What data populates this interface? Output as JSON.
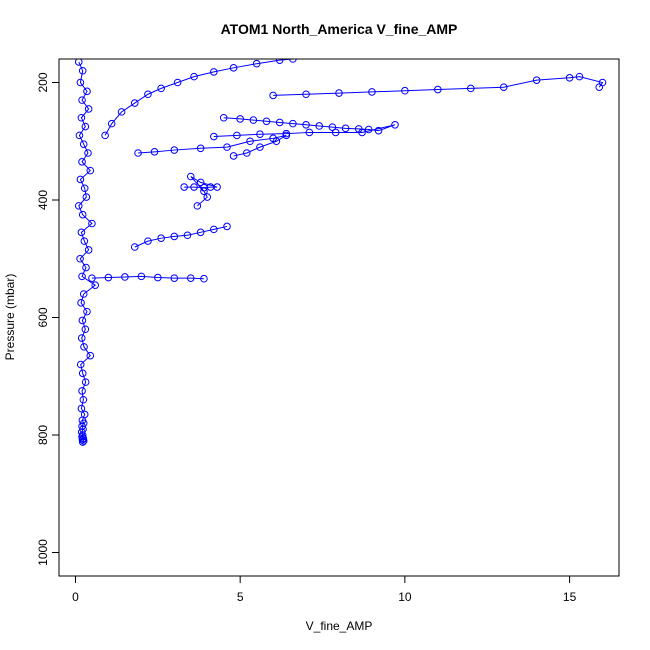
{
  "chart_data": {
    "type": "scatter",
    "title": "ATOM1 North_America V_fine_AMP",
    "xlabel": "V_fine_AMP",
    "ylabel": "Pressure (mbar)",
    "xlim": [
      -0.5,
      16.5
    ],
    "ylim": [
      1040,
      160
    ],
    "y_reversed": true,
    "x_ticks": [
      0,
      5,
      10,
      15
    ],
    "y_ticks": [
      200,
      400,
      600,
      800,
      1000
    ],
    "x_tick_labels": [
      "0",
      "5",
      "10",
      "15"
    ],
    "y_tick_labels": [
      "200",
      "400",
      "600",
      "800",
      "1000"
    ],
    "series_color": "#0000ff",
    "marker": "open-circle",
    "connected_by_lines": true,
    "grid": false,
    "series": [
      {
        "x": [
          0.1,
          0.22,
          0.15,
          0.35,
          0.2,
          0.4,
          0.18,
          0.3,
          0.12,
          0.25,
          0.38,
          0.2,
          0.45,
          0.15,
          0.28,
          0.33,
          0.1,
          0.22,
          0.5,
          0.18,
          0.27,
          0.4,
          0.14,
          0.32,
          0.2,
          0.6,
          0.25,
          0.17,
          0.35,
          0.21,
          0.3,
          0.19,
          0.26,
          0.45,
          0.16,
          0.22,
          0.31,
          0.2,
          0.24,
          0.18,
          0.28,
          0.21,
          0.25,
          0.2,
          0.23,
          0.19,
          0.22,
          0.2,
          0.24,
          0.21,
          0.25,
          0.22
        ],
        "y": [
          165,
          180,
          200,
          215,
          230,
          245,
          260,
          275,
          290,
          305,
          320,
          335,
          350,
          365,
          380,
          395,
          410,
          425,
          440,
          455,
          470,
          485,
          500,
          515,
          530,
          545,
          560,
          575,
          590,
          605,
          620,
          635,
          650,
          665,
          680,
          695,
          710,
          725,
          740,
          755,
          765,
          775,
          780,
          785,
          790,
          795,
          800,
          803,
          806,
          808,
          810,
          812
        ]
      },
      {
        "x": [
          0.9,
          1.1,
          1.4,
          1.8,
          2.2,
          2.6,
          3.1,
          3.6,
          4.2,
          4.8,
          5.5,
          6.2,
          6.6
        ],
        "y": [
          290,
          270,
          250,
          235,
          220,
          210,
          200,
          190,
          182,
          175,
          168,
          162,
          160
        ]
      },
      {
        "x": [
          3.3,
          3.6,
          3.9,
          4.1,
          4.3,
          3.8,
          3.5,
          3.9,
          4.0,
          3.7
        ],
        "y": [
          378,
          378,
          379,
          378,
          378,
          370,
          360,
          385,
          395,
          410
        ]
      },
      {
        "x": [
          4.5,
          5.0,
          5.4,
          5.8,
          6.2,
          6.6,
          7.0,
          7.4,
          7.8,
          8.2,
          8.6,
          8.9,
          9.2,
          9.7,
          8.7,
          7.9,
          7.1,
          6.4,
          5.6,
          4.9,
          4.2
        ],
        "y": [
          260,
          262,
          264,
          266,
          268,
          270,
          272,
          274,
          276,
          278,
          279,
          280,
          282,
          272,
          285,
          285,
          285,
          287,
          288,
          290,
          292
        ]
      },
      {
        "x": [
          1.9,
          2.4,
          3.0,
          3.8,
          4.6,
          5.3,
          6.0,
          6.4,
          6.1,
          5.6,
          5.2,
          4.8
        ],
        "y": [
          320,
          318,
          315,
          312,
          310,
          300,
          295,
          290,
          300,
          310,
          320,
          325
        ]
      },
      {
        "x": [
          0.5,
          1.0,
          1.5,
          2.0,
          2.5,
          3.0,
          3.5,
          3.9
        ],
        "y": [
          533,
          532,
          531,
          530,
          532,
          533,
          533,
          534
        ]
      },
      {
        "x": [
          1.8,
          2.2,
          2.6,
          3.0,
          3.4,
          3.8,
          4.2,
          4.6
        ],
        "y": [
          480,
          470,
          465,
          462,
          460,
          455,
          450,
          445
        ]
      },
      {
        "x": [
          6.0,
          7.0,
          8.0,
          9.0,
          10.0,
          11.0,
          12.0,
          13.0,
          14.0,
          15.0,
          15.3,
          16.0,
          15.9
        ],
        "y": [
          222,
          220,
          218,
          216,
          214,
          212,
          210,
          208,
          196,
          192,
          190,
          200,
          208
        ]
      }
    ]
  }
}
